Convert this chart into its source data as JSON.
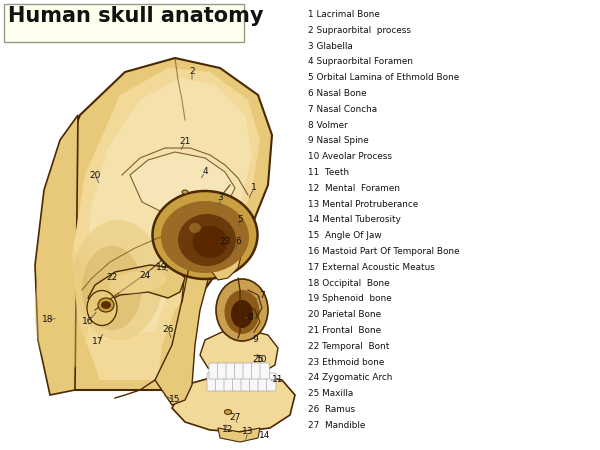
{
  "title": "Human skull anatomy",
  "title_bg": "#ffffee",
  "title_color": "#111111",
  "title_fontsize": 15,
  "bg_color": "#ffffff",
  "legend": [
    "1 Lacrimal Bone",
    "2 Supraorbital  process",
    "3 Glabella",
    "4 Supraorbital Foramen",
    "5 Orbital Lamina of Ethmold Bone",
    "6 Nasal Bone",
    "7 Nasal Concha",
    "8 Volmer",
    "9 Nasal Spine",
    "10 Aveolar Process",
    "11  Teeth",
    "12  Mental  Foramen",
    "13 Mental Protruberance",
    "14 Mental Tuberosity",
    "15  Angle Of Jaw",
    "16 Mastoid Part Of Temporal Bone",
    "17 External Acoustic Meatus",
    "18 Occipital  Bone",
    "19 Sphenoid  bone",
    "20 Parietal Bone",
    "21 Frontal  Bone",
    "22 Temporal  Bont",
    "23 Ethmoid bone",
    "24 Zygomatic Arch",
    "25 Maxilla",
    "26  Ramus",
    "27  Mandible"
  ],
  "skull_main": "#f2d998",
  "skull_light": "#f7e8bb",
  "skull_mid": "#e8c97a",
  "skull_dark": "#c8a040",
  "skull_vdark": "#8b6010",
  "outline": "#4a2800",
  "eye_rim": "#d4a855",
  "eye_mid": "#9b6a25",
  "eye_dark": "#6b3a0a",
  "nose_mid": "#c8a050",
  "nose_dark": "#8b5a18",
  "teeth_white": "#f8f8f8",
  "teeth_edge": "#cccccc"
}
